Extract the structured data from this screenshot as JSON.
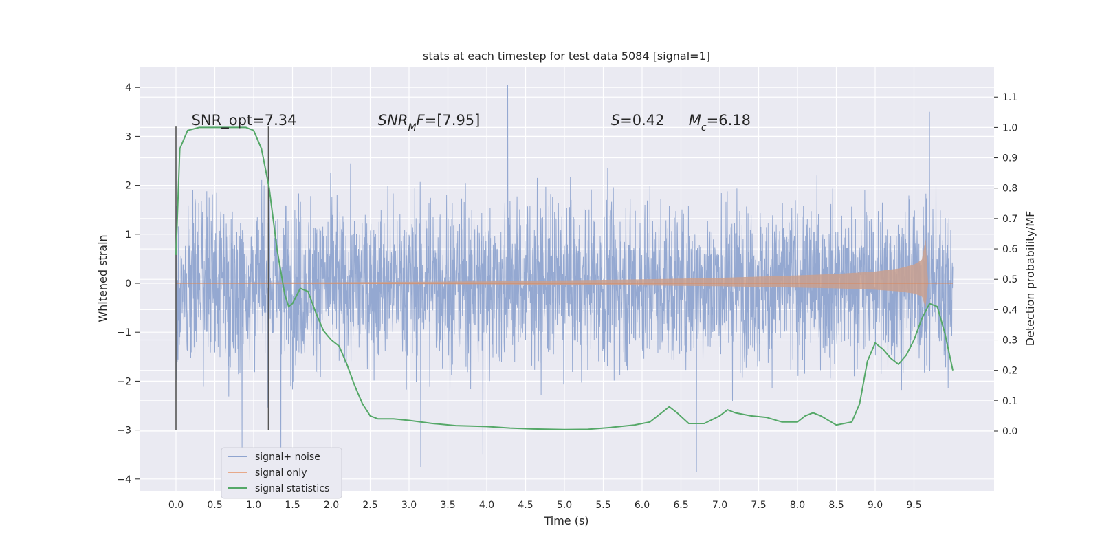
{
  "chart_data": {
    "type": "line",
    "title": "stats at each timestep for test data 5084 [signal=1]",
    "xlabel": "Time (s)",
    "ylabel_left": "Whitened strain",
    "ylabel_right": "Detection probability/MF",
    "xlim": [
      -0.48,
      10.5
    ],
    "ylim_left": [
      -4.2,
      4.4
    ],
    "ylim_right": [
      -0.19,
      1.17
    ],
    "x_ticks": [
      "0.0",
      "0.5",
      "1.0",
      "1.5",
      "2.0",
      "2.5",
      "3.0",
      "3.5",
      "4.0",
      "4.5",
      "5.0",
      "5.5",
      "6.0",
      "6.5",
      "7.0",
      "7.5",
      "8.0",
      "8.5",
      "9.0",
      "9.5"
    ],
    "x_tick_values": [
      0.0,
      0.5,
      1.0,
      1.5,
      2.0,
      2.5,
      3.0,
      3.5,
      4.0,
      4.5,
      5.0,
      5.5,
      6.0,
      6.5,
      7.0,
      7.5,
      8.0,
      8.5,
      9.0,
      9.5
    ],
    "y_ticks_left": [
      "4",
      "3",
      "2",
      "1",
      "0",
      "−1",
      "−2",
      "−3",
      "−4"
    ],
    "y_tick_values_left": [
      4,
      3,
      2,
      1,
      0,
      -1,
      -2,
      -3,
      -4
    ],
    "y_ticks_right": [
      "1.1",
      "1.0",
      "0.9",
      "0.8",
      "0.7",
      "0.6",
      "0.5",
      "0.4",
      "0.3",
      "0.2",
      "0.1",
      "0.0"
    ],
    "y_tick_values_right": [
      1.1,
      1.0,
      0.9,
      0.8,
      0.7,
      0.6,
      0.5,
      0.4,
      0.3,
      0.2,
      0.1,
      0.0
    ],
    "grid": true,
    "legend_position": "lower-left",
    "series": [
      {
        "name": "signal+ noise",
        "axis": "left",
        "color": "#8fa4cf",
        "style": "dense noise trace, approx ±1.6 typical, spikes to about +4.05 and −3.85",
        "x_range": [
          0.0,
          10.0
        ],
        "highlight_peaks": [
          [
            4.27,
            4.05
          ],
          [
            6.7,
            -3.85
          ],
          [
            3.15,
            -3.75
          ],
          [
            3.95,
            -3.5
          ],
          [
            0.85,
            -3.4
          ],
          [
            9.7,
            3.5
          ],
          [
            1.35,
            -3.5
          ]
        ]
      },
      {
        "name": "signal only",
        "axis": "left",
        "color": "#dd8452",
        "style": "chirp with growing amplitude, merger near 9.65 s",
        "envelope_x": [
          0.0,
          1.0,
          2.0,
          3.0,
          4.0,
          5.0,
          6.0,
          7.0,
          8.0,
          8.5,
          9.0,
          9.3,
          9.5,
          9.6,
          9.65,
          9.68,
          10.0
        ],
        "envelope_amp": [
          0.01,
          0.015,
          0.02,
          0.03,
          0.04,
          0.06,
          0.08,
          0.11,
          0.16,
          0.19,
          0.24,
          0.3,
          0.38,
          0.48,
          0.9,
          0.0,
          0.0
        ]
      },
      {
        "name": "signal statistics",
        "axis": "right",
        "color": "#55a868",
        "x": [
          0.0,
          0.05,
          0.15,
          0.3,
          0.5,
          0.7,
          0.9,
          1.0,
          1.1,
          1.2,
          1.3,
          1.4,
          1.45,
          1.5,
          1.6,
          1.7,
          1.8,
          1.9,
          2.0,
          2.1,
          2.2,
          2.3,
          2.4,
          2.5,
          2.6,
          2.8,
          3.0,
          3.3,
          3.6,
          4.0,
          4.3,
          4.6,
          5.0,
          5.3,
          5.6,
          5.9,
          6.1,
          6.25,
          6.35,
          6.45,
          6.6,
          6.8,
          7.0,
          7.1,
          7.2,
          7.4,
          7.6,
          7.8,
          8.0,
          8.1,
          8.2,
          8.3,
          8.5,
          8.7,
          8.8,
          8.9,
          9.0,
          9.1,
          9.2,
          9.3,
          9.4,
          9.5,
          9.6,
          9.7,
          9.8,
          9.9,
          10.0
        ],
        "values": [
          0.58,
          0.93,
          0.99,
          1.0,
          1.0,
          1.0,
          1.0,
          0.99,
          0.93,
          0.8,
          0.6,
          0.45,
          0.41,
          0.42,
          0.47,
          0.46,
          0.39,
          0.33,
          0.3,
          0.28,
          0.22,
          0.15,
          0.09,
          0.05,
          0.04,
          0.04,
          0.035,
          0.025,
          0.018,
          0.015,
          0.01,
          0.007,
          0.005,
          0.006,
          0.012,
          0.02,
          0.03,
          0.06,
          0.08,
          0.06,
          0.025,
          0.025,
          0.05,
          0.07,
          0.06,
          0.05,
          0.045,
          0.03,
          0.03,
          0.05,
          0.06,
          0.05,
          0.02,
          0.03,
          0.09,
          0.23,
          0.29,
          0.27,
          0.24,
          0.22,
          0.25,
          0.3,
          0.37,
          0.42,
          0.41,
          0.32,
          0.2
        ]
      }
    ],
    "vertical_lines": [
      0.0,
      1.19
    ],
    "vertical_line_range_left": [
      -3.0,
      3.2
    ],
    "annotations": [
      {
        "prefix": "SNR_opt=7.34",
        "x": 0.2,
        "y": 3.2
      },
      {
        "prefix": "SNR",
        "subscript": "M",
        "suffix": "F=[7.95]",
        "x": 2.6,
        "y": 3.2
      },
      {
        "prefix": "S",
        "suffix": "=0.42",
        "x": 5.6,
        "y": 3.2
      },
      {
        "prefix": "M",
        "subscript": "c",
        "suffix": "=6.18",
        "x": 6.6,
        "y": 3.2
      }
    ],
    "colors": {
      "plot_bg": "#eaeaf2",
      "grid": "#ffffff",
      "text": "#262626"
    }
  }
}
